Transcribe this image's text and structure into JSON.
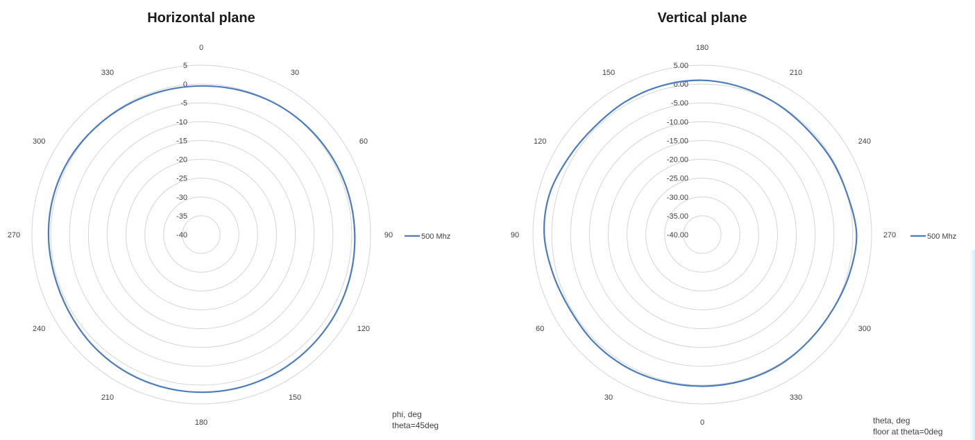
{
  "colors": {
    "series": "#4a7bbf",
    "grid": "#d4d4d4",
    "text": "#404040",
    "title": "#1a1a1a"
  },
  "chart_data": [
    {
      "type": "polar-line",
      "title": "Horizontal plane",
      "radial_range": [
        -40,
        5
      ],
      "radial_ticks": [
        "5",
        "0",
        "-5",
        "-10",
        "-15",
        "-20",
        "-25",
        "-30",
        "-35",
        "-40"
      ],
      "angle_direction": "clockwise",
      "angle_zero_at": "top",
      "angle_ticks": [
        "0",
        "30",
        "60",
        "90",
        "120",
        "150",
        "180",
        "210",
        "240",
        "270",
        "300",
        "330"
      ],
      "legend_position": "right",
      "notes": [
        "phi, deg",
        "theta=45deg"
      ],
      "series": [
        {
          "name": "500 Mhz",
          "angles": [
            0,
            15,
            30,
            45,
            60,
            75,
            90,
            105,
            120,
            135,
            150,
            165,
            180,
            195,
            210,
            225,
            240,
            255,
            270,
            285,
            300,
            315,
            330,
            345
          ],
          "values": [
            -0.5,
            -0.3,
            0.0,
            0.2,
            0.4,
            0.6,
            0.8,
            1.1,
            1.4,
            1.6,
            1.8,
            1.9,
            1.9,
            1.8,
            1.6,
            1.2,
            0.7,
            0.5,
            0.6,
            0.6,
            0.4,
            0.0,
            -0.3,
            -0.5
          ]
        }
      ]
    },
    {
      "type": "polar-line",
      "title": "Vertical plane",
      "radial_range": [
        -40,
        5
      ],
      "radial_ticks": [
        "5.00",
        "0.00",
        "-5.00",
        "-10.00",
        "-15.00",
        "-20.00",
        "-25.00",
        "-30.00",
        "-35.00",
        "-40.00"
      ],
      "angle_direction": "clockwise",
      "angle_zero_at": "bottom",
      "angle_ticks": [
        "180",
        "210",
        "240",
        "270",
        "300",
        "330",
        "0",
        "30",
        "60",
        "90",
        "120",
        "150"
      ],
      "legend_position": "right",
      "notes": [
        "theta, deg",
        "floor at theta=0deg"
      ],
      "series": [
        {
          "name": "500 Mhz",
          "angles": [
            180,
            195,
            210,
            225,
            240,
            255,
            270,
            285,
            300,
            315,
            330,
            345,
            0,
            15,
            30,
            45,
            60,
            75,
            90,
            105,
            120,
            135,
            150,
            165
          ],
          "values": [
            1.0,
            0.5,
            0.0,
            -0.5,
            -0.3,
            0.0,
            1.0,
            0.5,
            0.0,
            0.0,
            0.3,
            0.3,
            0.3,
            0.4,
            0.6,
            0.6,
            0.4,
            1.0,
            2.0,
            2.0,
            1.0,
            0.5,
            0.8,
            1.0
          ]
        }
      ]
    }
  ]
}
